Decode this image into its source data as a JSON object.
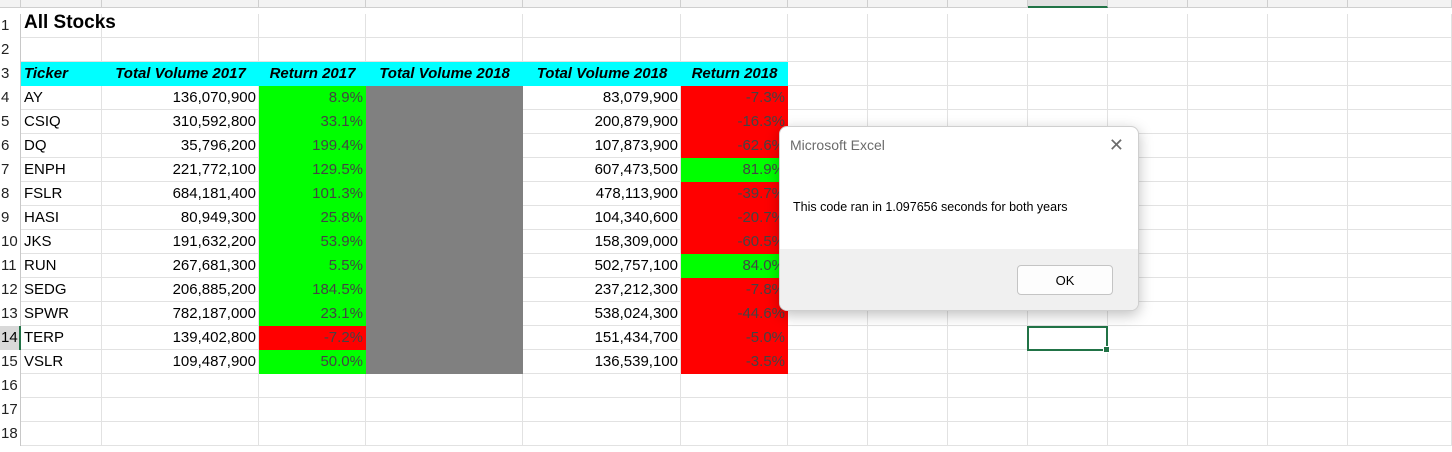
{
  "sheet_title": "All Stocks",
  "row_numbers": [
    "1",
    "2",
    "3",
    "4",
    "5",
    "6",
    "7",
    "8",
    "9",
    "10",
    "11",
    "12",
    "13",
    "14",
    "15",
    "16",
    "17",
    "18"
  ],
  "headers": [
    "Ticker",
    "Total Volume 2017",
    "Return 2017",
    "Total Volume 2018",
    "Total Volume 2018",
    "Return 2018"
  ],
  "rows": [
    {
      "ticker": "AY",
      "vol2017": "136,070,900",
      "ret2017": "8.9%",
      "vol2018": "83,079,900",
      "ret2018": "-7.3%",
      "pos2017": true,
      "pos2018": false
    },
    {
      "ticker": "CSIQ",
      "vol2017": "310,592,800",
      "ret2017": "33.1%",
      "vol2018": "200,879,900",
      "ret2018": "-16.3%",
      "pos2017": true,
      "pos2018": false
    },
    {
      "ticker": "DQ",
      "vol2017": "35,796,200",
      "ret2017": "199.4%",
      "vol2018": "107,873,900",
      "ret2018": "-62.6%",
      "pos2017": true,
      "pos2018": false
    },
    {
      "ticker": "ENPH",
      "vol2017": "221,772,100",
      "ret2017": "129.5%",
      "vol2018": "607,473,500",
      "ret2018": "81.9%",
      "pos2017": true,
      "pos2018": true
    },
    {
      "ticker": "FSLR",
      "vol2017": "684,181,400",
      "ret2017": "101.3%",
      "vol2018": "478,113,900",
      "ret2018": "-39.7%",
      "pos2017": true,
      "pos2018": false
    },
    {
      "ticker": "HASI",
      "vol2017": "80,949,300",
      "ret2017": "25.8%",
      "vol2018": "104,340,600",
      "ret2018": "-20.7%",
      "pos2017": true,
      "pos2018": false
    },
    {
      "ticker": "JKS",
      "vol2017": "191,632,200",
      "ret2017": "53.9%",
      "vol2018": "158,309,000",
      "ret2018": "-60.5%",
      "pos2017": true,
      "pos2018": false
    },
    {
      "ticker": "RUN",
      "vol2017": "267,681,300",
      "ret2017": "5.5%",
      "vol2018": "502,757,100",
      "ret2018": "84.0%",
      "pos2017": true,
      "pos2018": true
    },
    {
      "ticker": "SEDG",
      "vol2017": "206,885,200",
      "ret2017": "184.5%",
      "vol2018": "237,212,300",
      "ret2018": "-7.8%",
      "pos2017": true,
      "pos2018": false
    },
    {
      "ticker": "SPWR",
      "vol2017": "782,187,000",
      "ret2017": "23.1%",
      "vol2018": "538,024,300",
      "ret2018": "-44.6%",
      "pos2017": true,
      "pos2018": false
    },
    {
      "ticker": "TERP",
      "vol2017": "139,402,800",
      "ret2017": "-7.2%",
      "vol2018": "151,434,700",
      "ret2018": "-5.0%",
      "pos2017": false,
      "pos2018": false
    },
    {
      "ticker": "VSLR",
      "vol2017": "109,487,900",
      "ret2017": "50.0%",
      "vol2018": "136,539,100",
      "ret2018": "-3.5%",
      "pos2017": true,
      "pos2018": false
    }
  ],
  "colors": {
    "header_fill": "#00ffff",
    "positive": "#00ff00",
    "negative": "#ff0000",
    "gray_column": "#808080",
    "selection": "#217346"
  },
  "dialog": {
    "title": "Microsoft Excel",
    "message": "This code ran in 1.097656 seconds for both years",
    "ok_label": "OK",
    "close_icon": "close-icon"
  }
}
